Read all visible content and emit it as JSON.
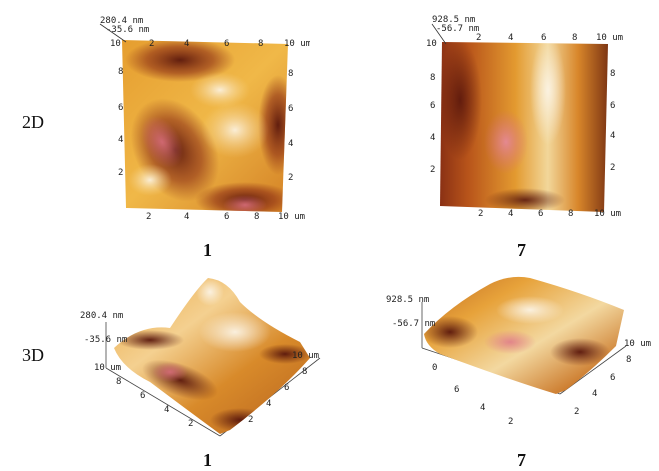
{
  "figure": {
    "row_labels": {
      "top": "2D",
      "bottom": "3D"
    },
    "captions": {
      "top_left": "1",
      "top_right": "7",
      "bottom_left": "1",
      "bottom_right": "7"
    },
    "panels": {
      "top_left": {
        "zmax": "280.4 nm",
        "zmin": "-35.6 nm",
        "top_ticks": [
          "2",
          "4",
          "6",
          "8",
          "10 um"
        ],
        "top_left_corner": "10",
        "bottom_ticks": [
          "2",
          "4",
          "6",
          "8",
          "10 um"
        ],
        "left_ticks": [
          "8",
          "6",
          "4",
          "2"
        ],
        "right_ticks": [
          "8",
          "6",
          "4",
          "2"
        ]
      },
      "top_right": {
        "zmax": "928.5 nm",
        "zmin": "-56.7 nm",
        "top_ticks": [
          "2",
          "4",
          "6",
          "8",
          "10 um"
        ],
        "top_left_corner": "10",
        "bottom_ticks": [
          "2",
          "4",
          "6",
          "8",
          "10 um"
        ],
        "left_ticks": [
          "8",
          "6",
          "4",
          "2"
        ],
        "right_ticks": [
          "8",
          "6",
          "4",
          "2"
        ]
      },
      "bottom_left": {
        "zmax": "280.4 nm",
        "zmin": "-35.6 nm",
        "axis_end": "10 um",
        "left_axis": [
          "10 um",
          "8",
          "6",
          "4",
          "2"
        ],
        "right_axis": [
          "8",
          "6",
          "4",
          "2"
        ]
      },
      "bottom_right": {
        "zmax": "928.5 nm",
        "zmin": "-56.7 nm",
        "axis_end": "10 um",
        "left_axis": [
          "0",
          "6",
          "4",
          "2"
        ],
        "right_axis": [
          "8",
          "6",
          "4",
          "2"
        ]
      }
    },
    "colors": {
      "dark": "#6b1e12",
      "mid": "#c96a1a",
      "bright": "#f2b640",
      "light": "#f3e7d0",
      "pink": "#d9707c"
    }
  }
}
